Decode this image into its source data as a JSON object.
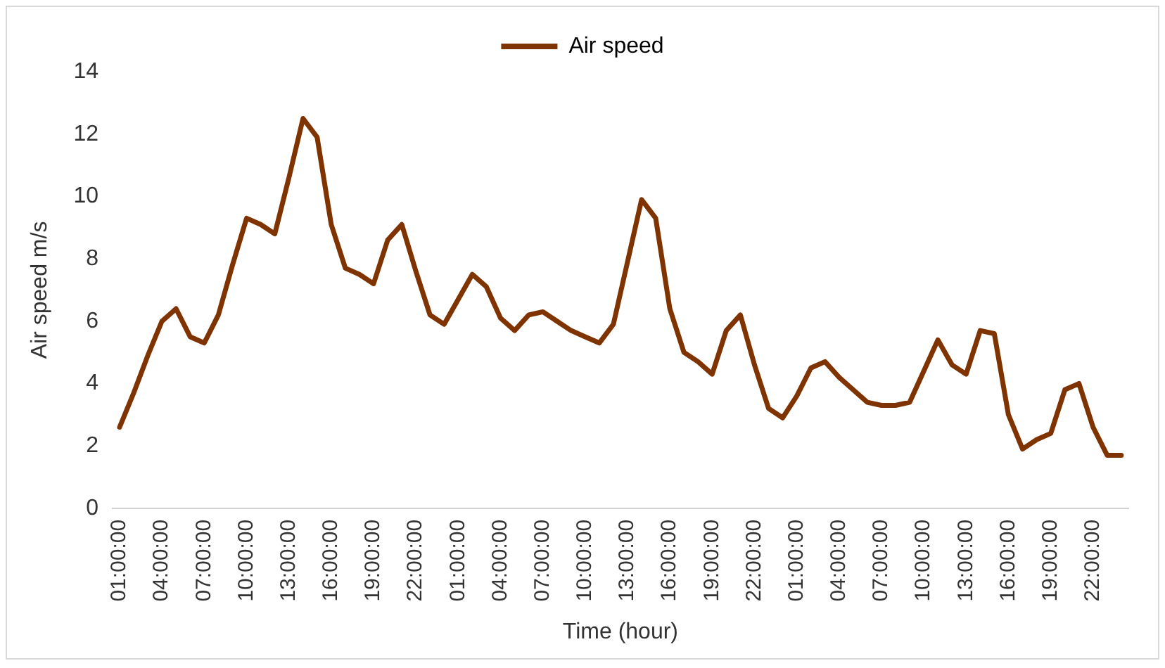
{
  "chart_data": {
    "type": "line",
    "xlabel": "Time (hour)",
    "ylabel": "Air speed m/s",
    "categories": [
      "01:00:00",
      null,
      null,
      "04:00:00",
      null,
      null,
      "07:00:00",
      null,
      null,
      "10:00:00",
      null,
      null,
      "13:00:00",
      null,
      null,
      "16:00:00",
      null,
      null,
      "19:00:00",
      null,
      null,
      "22:00:00",
      null,
      null,
      "01:00:00",
      null,
      null,
      "04:00:00",
      null,
      null,
      "07:00:00",
      null,
      null,
      "10:00:00",
      null,
      null,
      "13:00:00",
      null,
      null,
      "16:00:00",
      null,
      null,
      "19:00:00",
      null,
      null,
      "22:00:00",
      null,
      null,
      "01:00:00",
      null,
      null,
      "04:00:00",
      null,
      null,
      "07:00:00",
      null,
      null,
      "10:00:00",
      null,
      null,
      "13:00:00",
      null,
      null,
      "16:00:00",
      null,
      null,
      "19:00:00",
      null,
      null,
      "22:00:00",
      null,
      null
    ],
    "series": [
      {
        "name": "Air speed",
        "color": "#7f3300",
        "values": [
          2.6,
          3.7,
          4.9,
          6.0,
          6.4,
          5.5,
          5.3,
          6.2,
          7.8,
          9.3,
          9.1,
          8.8,
          10.6,
          12.5,
          11.9,
          9.1,
          7.7,
          7.5,
          7.2,
          8.6,
          9.1,
          7.6,
          6.2,
          5.9,
          6.7,
          7.5,
          7.1,
          6.1,
          5.7,
          6.2,
          6.3,
          6.0,
          5.7,
          5.5,
          5.3,
          5.9,
          7.9,
          9.9,
          9.3,
          6.4,
          5.0,
          4.7,
          4.3,
          5.7,
          6.2,
          4.6,
          3.2,
          2.9,
          3.6,
          4.5,
          4.7,
          4.2,
          3.8,
          3.4,
          3.3,
          3.3,
          3.4,
          4.4,
          5.4,
          4.6,
          4.3,
          5.7,
          5.6,
          3.0,
          1.9,
          2.2,
          2.4,
          3.8,
          4.0,
          2.6,
          1.7,
          1.7
        ]
      }
    ],
    "ylim": [
      0,
      14
    ],
    "yticks": [
      0,
      2,
      4,
      6,
      8,
      10,
      12,
      14
    ],
    "grid": false,
    "legend": "top",
    "marker": "none",
    "line_style": "solid"
  }
}
